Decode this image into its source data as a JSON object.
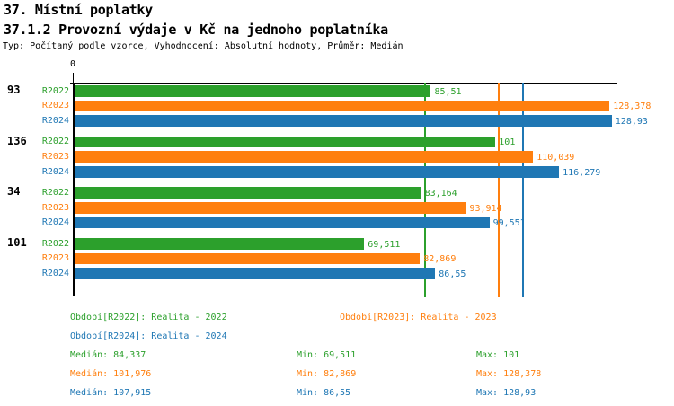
{
  "title": "37. Místní poplatky",
  "subtitle": "37.1.2 Provozní výdaje v Kč na jednoho poplatníka",
  "meta": "Typ: Počítaný podle vzorce, Vyhodnocení: Absolutní hodnoty, Průměr: Medián",
  "colors": {
    "r2022": "#2ca02c",
    "r2023": "#ff7f0e",
    "r2024": "#1f77b4",
    "axis": "#000000"
  },
  "chart_data": {
    "type": "bar",
    "orientation": "horizontal",
    "value_axis": {
      "zero_label": "0",
      "min": 0,
      "max": 130.7,
      "grid": false
    },
    "series": [
      {
        "label": "R2022",
        "color": "#2ca02c",
        "legend": "Období[R2022]: Realita - 2022"
      },
      {
        "label": "R2023",
        "color": "#ff7f0e",
        "legend": "Období[R2023]: Realita - 2023"
      },
      {
        "label": "R2024",
        "color": "#1f77b4",
        "legend": "Období[R2024]: Realita - 2024"
      }
    ],
    "categories": [
      "93",
      "136",
      "34",
      "101"
    ],
    "values": [
      [
        85.51,
        128.378,
        128.93
      ],
      [
        101,
        110.039,
        116.279
      ],
      [
        83.164,
        93.914,
        99.551
      ],
      [
        69.511,
        82.869,
        86.55
      ]
    ],
    "value_labels": [
      [
        "85,51",
        "128,378",
        "128,93"
      ],
      [
        "101",
        "110,039",
        "116,279"
      ],
      [
        "83,164",
        "93,914",
        "99,551"
      ],
      [
        "69,511",
        "82,869",
        "86,55"
      ]
    ],
    "reference_lines": [
      {
        "name": "Medián R2022",
        "value": 84.337,
        "color": "#2ca02c"
      },
      {
        "name": "Medián R2023",
        "value": 101.976,
        "color": "#ff7f0e"
      },
      {
        "name": "Medián R2024",
        "value": 107.915,
        "color": "#1f77b4"
      }
    ]
  },
  "stats": [
    {
      "median": "Medián: 84,337",
      "min": "Min: 69,511",
      "max": "Max: 101",
      "color": "#2ca02c"
    },
    {
      "median": "Medián: 101,976",
      "min": "Min: 82,869",
      "max": "Max: 128,378",
      "color": "#ff7f0e"
    },
    {
      "median": "Medián: 107,915",
      "min": "Min: 86,55",
      "max": "Max: 128,93",
      "color": "#1f77b4"
    }
  ]
}
